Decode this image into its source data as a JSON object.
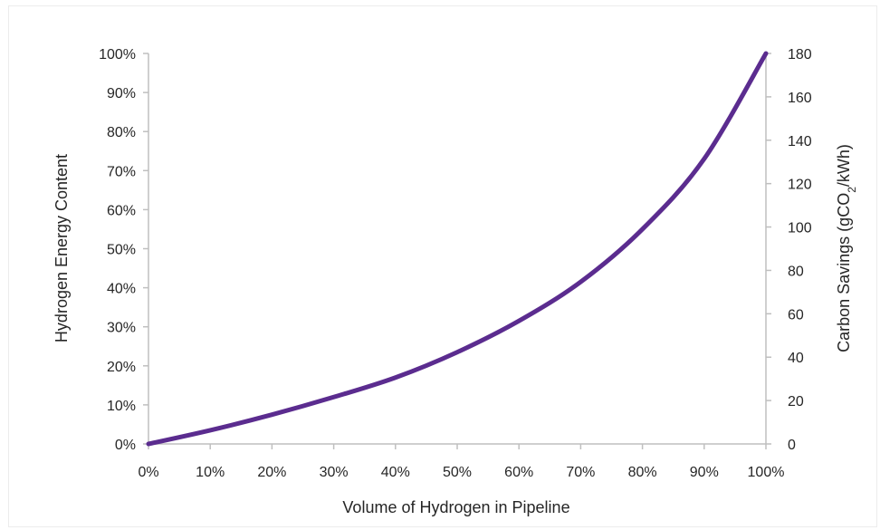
{
  "chart_data": {
    "type": "line",
    "xlabel": "Volume of Hydrogen in Pipeline",
    "ylabel_left": "Hydrogen Energy Content",
    "ylabel_right_parts": {
      "pre": "Carbon Savings (gCO",
      "sub": "2",
      "post": "/kWh)"
    },
    "xlim": [
      0,
      100
    ],
    "ylim_left": [
      0,
      100
    ],
    "ylim_right": [
      0,
      180
    ],
    "x_ticks": [
      "0%",
      "10%",
      "20%",
      "30%",
      "40%",
      "50%",
      "60%",
      "70%",
      "80%",
      "90%",
      "100%"
    ],
    "y_left_ticks": [
      "0%",
      "10%",
      "20%",
      "30%",
      "40%",
      "50%",
      "60%",
      "70%",
      "80%",
      "90%",
      "100%"
    ],
    "y_right_ticks": [
      "0",
      "20",
      "40",
      "60",
      "80",
      "100",
      "120",
      "140",
      "160",
      "180"
    ],
    "grid": false,
    "series": [
      {
        "color": "#5b2c8f",
        "x": [
          0,
          10,
          20,
          30,
          40,
          50,
          60,
          70,
          80,
          90,
          100
        ],
        "y": [
          0,
          3.5,
          7.5,
          12,
          17,
          23.5,
          31.5,
          41.5,
          55,
          73,
          100
        ]
      }
    ]
  }
}
